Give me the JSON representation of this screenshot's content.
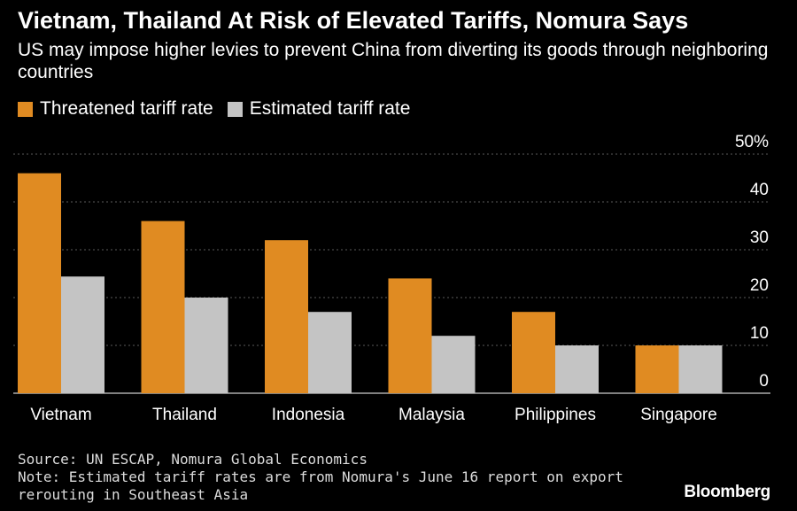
{
  "header": {
    "title": "Vietnam, Thailand At Risk of Elevated Tariffs, Nomura Says",
    "subtitle": "US may impose higher levies to prevent China from diverting its goods through neighboring countries"
  },
  "legend": [
    {
      "label": "Threatened tariff rate",
      "color": "#e08b22"
    },
    {
      "label": "Estimated tariff rate",
      "color": "#c4c4c4"
    }
  ],
  "chart_data": {
    "type": "bar",
    "categories": [
      "Vietnam",
      "Thailand",
      "Indonesia",
      "Malaysia",
      "Philippines",
      "Singapore"
    ],
    "series": [
      {
        "name": "Threatened tariff rate",
        "color": "#e08b22",
        "values": [
          46,
          36,
          32,
          24,
          17,
          10
        ]
      },
      {
        "name": "Estimated tariff rate",
        "color": "#c4c4c4",
        "values": [
          24.4,
          20,
          17,
          12,
          10,
          10
        ]
      }
    ],
    "ylim": [
      0,
      50
    ],
    "yticks": [
      0,
      10,
      20,
      30,
      40,
      50
    ],
    "ytick_labels": [
      "0",
      "10",
      "20",
      "30",
      "40",
      "50%"
    ],
    "y_axis_position": "right",
    "grid": true,
    "legend_position": "top-left"
  },
  "footer": {
    "source": "Source: UN ESCAP, Nomura Global Economics",
    "note_line1": "Note: Estimated tariff rates are from Nomura's June 16 report on export",
    "note_line2": "rerouting in Southeast Asia"
  },
  "brand": "Bloomberg"
}
